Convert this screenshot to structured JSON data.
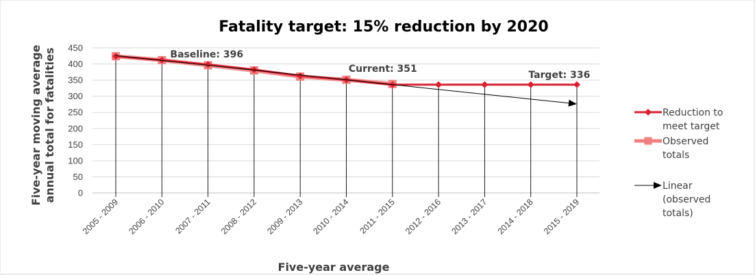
{
  "chart_data": {
    "type": "line",
    "title": "Fatality target: 15% reduction by 2020",
    "xlabel": "Five-year average",
    "ylabel_lines": [
      "Five-year moving average",
      "annual total for fatalities"
    ],
    "categories": [
      "2005 - 2009",
      "2006 - 2010",
      "2007 - 2011",
      "2008 - 2012",
      "2009 - 2013",
      "2010 - 2014",
      "2011 - 2015",
      "2012 - 2016",
      "2013 - 2017",
      "2014 - 2018",
      "2015 - 2019"
    ],
    "ylim": [
      0,
      450
    ],
    "yticks": [
      0,
      50,
      100,
      150,
      200,
      250,
      300,
      350,
      400,
      450
    ],
    "grid": true,
    "legend_position": "right",
    "series": [
      {
        "key": "target",
        "name_lines": [
          "Reduction to",
          "meet target"
        ],
        "color": "#d9202e",
        "marker": "diamond",
        "values": [
          424,
          412,
          398,
          382,
          363,
          351,
          336,
          336,
          336,
          336,
          336
        ]
      },
      {
        "key": "observed",
        "name_lines": [
          "Observed",
          "totals"
        ],
        "color": "#f08080",
        "marker": "square",
        "values": [
          424,
          412,
          396,
          380,
          361,
          351,
          338,
          null,
          null,
          null,
          null
        ]
      },
      {
        "key": "linear",
        "name_lines": [
          "Linear",
          "(observed",
          "totals)"
        ],
        "color": "#000000",
        "marker": "arrow",
        "trend": {
          "start_index": 0,
          "start_value": 426,
          "end_index": 10,
          "end_value": 276
        }
      }
    ],
    "annotations": [
      {
        "key": "baseline",
        "text": "Baseline: 396",
        "index": 1.18,
        "value": 420
      },
      {
        "key": "current",
        "text": "Current: 351",
        "index": 5.05,
        "value": 376
      },
      {
        "key": "target",
        "text": "Target: 336",
        "index": 8.95,
        "value": 357
      }
    ]
  }
}
